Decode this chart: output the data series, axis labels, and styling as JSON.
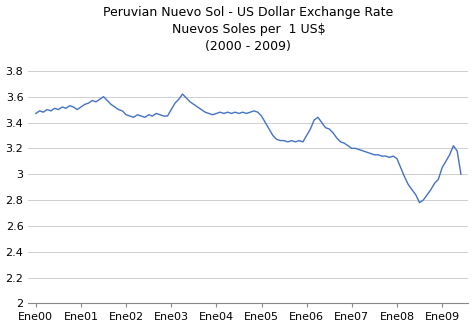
{
  "title_line1": "Peruvian Nuevo Sol - US Dollar Exchange Rate",
  "title_line2": "Nuevos Soles per  1 US$",
  "title_line3": "(2000 - 2009)",
  "line_color": "#4472C4",
  "background_color": "#FFFFFF",
  "plot_bg_color": "#FFFFFF",
  "ylim": [
    2.0,
    3.9
  ],
  "yticks": [
    2.0,
    2.2,
    2.4,
    2.6,
    2.8,
    3.0,
    3.2,
    3.4,
    3.6,
    3.8
  ],
  "ytick_labels": [
    "2",
    "2.2",
    "2.4",
    "2.6",
    "2.8",
    "3",
    "3.2",
    "3.4",
    "3.6",
    "3.8"
  ],
  "xtick_labels": [
    "Ene00",
    "Ene01",
    "Ene02",
    "Ene03",
    "Ene04",
    "Ene05",
    "Ene06",
    "Ene07",
    "Ene08",
    "Ene09"
  ],
  "x_values": [
    0,
    1,
    2,
    3,
    4,
    5,
    6,
    7,
    8,
    9,
    10,
    11,
    12,
    13,
    14,
    15,
    16,
    17,
    18,
    19,
    20,
    21,
    22,
    23,
    24,
    25,
    26,
    27,
    28,
    29,
    30,
    31,
    32,
    33,
    34,
    35,
    36,
    37,
    38,
    39,
    40,
    41,
    42,
    43,
    44,
    45,
    46,
    47,
    48,
    49,
    50,
    51,
    52,
    53,
    54,
    55,
    56,
    57,
    58,
    59,
    60,
    61,
    62,
    63,
    64,
    65,
    66,
    67,
    68,
    69,
    70,
    71,
    72,
    73,
    74,
    75,
    76,
    77,
    78,
    79,
    80,
    81,
    82,
    83,
    84,
    85,
    86,
    87,
    88,
    89,
    90,
    91,
    92,
    93,
    94,
    95,
    96,
    97,
    98,
    99,
    100,
    101,
    102,
    103,
    104,
    105,
    106,
    107,
    108,
    109,
    110,
    111,
    112,
    113
  ],
  "y_values": [
    3.47,
    3.49,
    3.48,
    3.5,
    3.49,
    3.51,
    3.5,
    3.52,
    3.51,
    3.53,
    3.52,
    3.5,
    3.52,
    3.54,
    3.55,
    3.57,
    3.56,
    3.58,
    3.6,
    3.57,
    3.54,
    3.52,
    3.5,
    3.49,
    3.46,
    3.45,
    3.44,
    3.46,
    3.45,
    3.44,
    3.46,
    3.45,
    3.47,
    3.46,
    3.45,
    3.45,
    3.5,
    3.55,
    3.58,
    3.62,
    3.59,
    3.56,
    3.54,
    3.52,
    3.5,
    3.48,
    3.47,
    3.46,
    3.47,
    3.48,
    3.47,
    3.48,
    3.47,
    3.48,
    3.47,
    3.48,
    3.47,
    3.48,
    3.49,
    3.48,
    3.45,
    3.4,
    3.35,
    3.3,
    3.27,
    3.26,
    3.26,
    3.25,
    3.26,
    3.25,
    3.26,
    3.25,
    3.3,
    3.35,
    3.42,
    3.44,
    3.4,
    3.36,
    3.35,
    3.32,
    3.28,
    3.25,
    3.24,
    3.22,
    3.2,
    3.2,
    3.19,
    3.18,
    3.17,
    3.16,
    3.15,
    3.15,
    3.14,
    3.14,
    3.13,
    3.14,
    3.12,
    3.05,
    2.98,
    2.92,
    2.88,
    2.84,
    2.78,
    2.8,
    2.84,
    2.88,
    2.93,
    2.96,
    3.05,
    3.1,
    3.15,
    3.22,
    3.18,
    3.0
  ]
}
